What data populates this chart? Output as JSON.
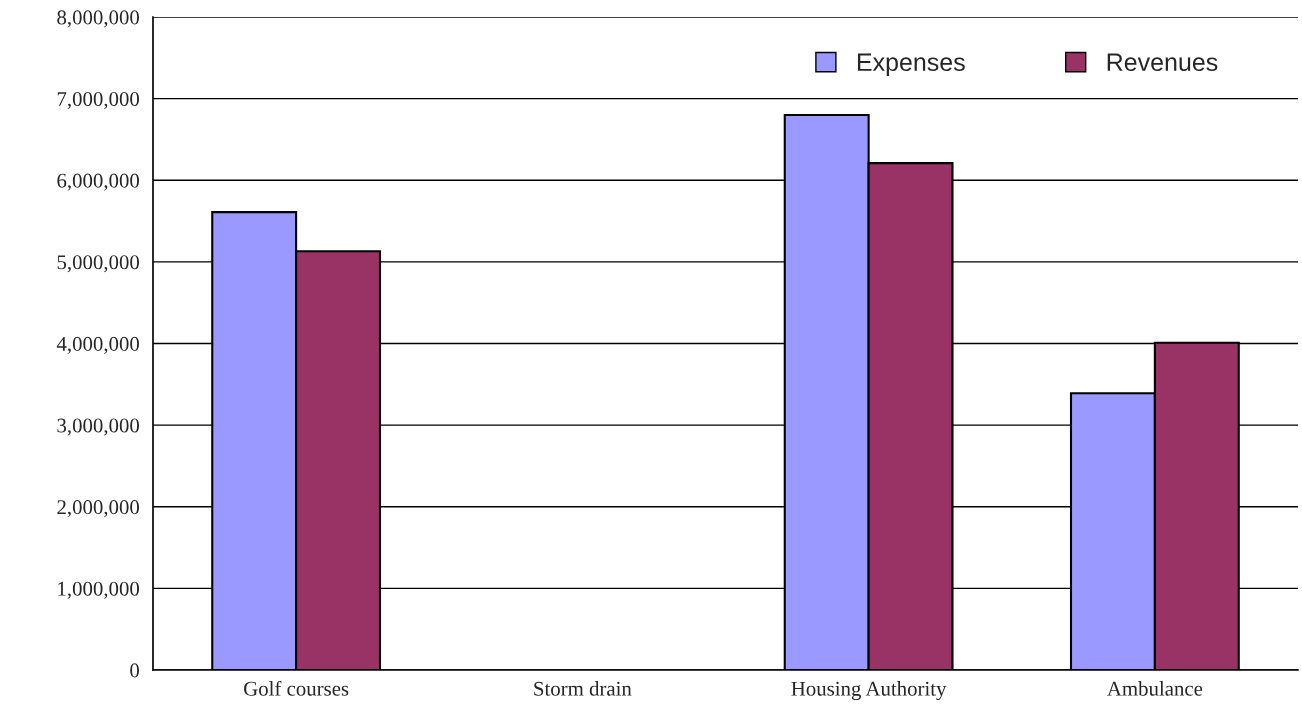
{
  "chart_data": {
    "type": "bar",
    "categories": [
      "Golf courses",
      "Storm drain",
      "Housing Authority",
      "Ambulance"
    ],
    "series": [
      {
        "name": "Expenses",
        "color": "#9999ff",
        "values": [
          5610000,
          null,
          6800000,
          3390000
        ]
      },
      {
        "name": "Revenues",
        "color": "#993366",
        "values": [
          5130000,
          null,
          6210000,
          4010000
        ]
      }
    ],
    "ylim": [
      0,
      8000000
    ],
    "yticks": [
      {
        "value": 0,
        "label": "0"
      },
      {
        "value": 1000000,
        "label": "1,000,000"
      },
      {
        "value": 2000000,
        "label": "2,000,000"
      },
      {
        "value": 3000000,
        "label": "3,000,000"
      },
      {
        "value": 4000000,
        "label": "4,000,000"
      },
      {
        "value": 5000000,
        "label": "5,000,000"
      },
      {
        "value": 6000000,
        "label": "6,000,000"
      },
      {
        "value": 7000000,
        "label": "7,000,000"
      },
      {
        "value": 8000000,
        "label": "8,000,000"
      }
    ],
    "grid": "y",
    "legend": "top right"
  }
}
